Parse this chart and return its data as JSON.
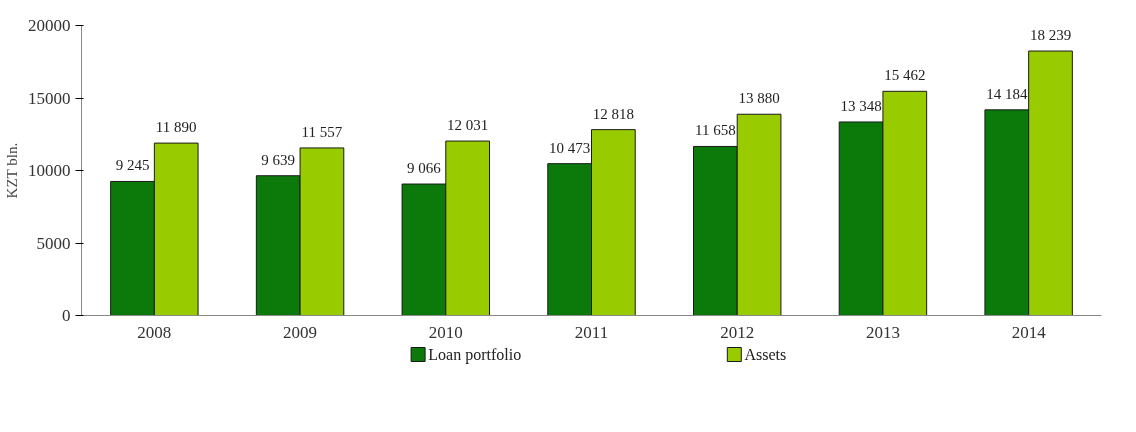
{
  "chart_data": {
    "type": "bar",
    "ylabel": "KZT bln.",
    "categories": [
      "2008",
      "2009",
      "2010",
      "2011",
      "2012",
      "2013",
      "2014"
    ],
    "series": [
      {
        "name": "Loan portfolio",
        "color": "#0b7a0b",
        "values": [
          9245,
          9639,
          9066,
          10473,
          11658,
          13348,
          14184
        ],
        "value_labels": [
          "9 245",
          "9 639",
          "9 066",
          "10 473",
          "11 658",
          "13 348",
          "14 184"
        ]
      },
      {
        "name": "Assets",
        "color": "#99cc00",
        "values": [
          11890,
          11557,
          12031,
          12818,
          13880,
          15462,
          18239
        ],
        "value_labels": [
          "11 890",
          "11 557",
          "12 031",
          "12 818",
          "13 880",
          "15 462",
          "18 239"
        ]
      }
    ],
    "ylim": [
      0,
      20000
    ],
    "yticks": [
      0,
      5000,
      10000,
      15000,
      20000
    ],
    "grid": false,
    "legend": "bottom"
  }
}
